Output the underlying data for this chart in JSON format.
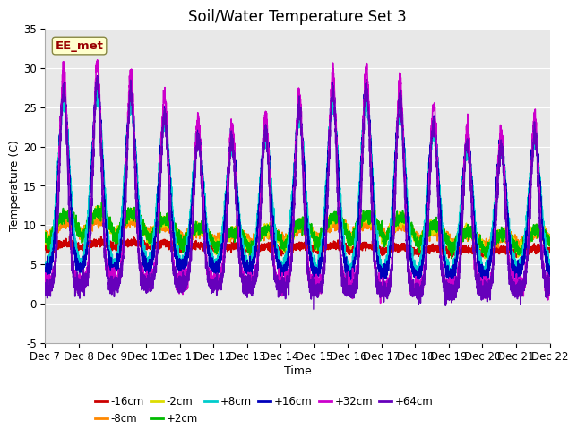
{
  "title": "Soil/Water Temperature Set 3",
  "xlabel": "Time",
  "ylabel": "Temperature (C)",
  "ylim": [
    -5,
    35
  ],
  "duration_days": 15,
  "n_points": 4320,
  "xtick_labels": [
    "Dec 7",
    "Dec 8",
    "Dec 9",
    "Dec 10",
    "Dec 11",
    "Dec 12",
    "Dec 13",
    "Dec 14",
    "Dec 15",
    "Dec 16",
    "Dec 17",
    "Dec 18",
    "Dec 19",
    "Dec 20",
    "Dec 21",
    "Dec 22"
  ],
  "plot_bg": "#e8e8e8",
  "series": [
    {
      "label": "-16cm",
      "color": "#cc0000",
      "lw": 1.2,
      "zorder": 3,
      "base": 5.8,
      "amp": 1.8,
      "phase_shift": 0.55,
      "sharpness": 0.5,
      "min_val": 4.5,
      "noise": 0.25
    },
    {
      "label": "-8cm",
      "color": "#ff8800",
      "lw": 1.2,
      "zorder": 3,
      "base": 4.5,
      "amp": 6.0,
      "phase_shift": 0.5,
      "sharpness": 0.6,
      "min_val": 1.0,
      "noise": 0.35
    },
    {
      "label": "-2cm",
      "color": "#dddd00",
      "lw": 1.2,
      "zorder": 3,
      "base": 3.0,
      "amp": 8.5,
      "phase_shift": 0.45,
      "sharpness": 0.5,
      "min_val": -1.5,
      "noise": 0.4
    },
    {
      "label": "+2cm",
      "color": "#00bb00",
      "lw": 1.2,
      "zorder": 3,
      "base": 3.0,
      "amp": 8.5,
      "phase_shift": 0.45,
      "sharpness": 0.5,
      "min_val": -1.5,
      "noise": 0.4
    },
    {
      "label": "+8cm",
      "color": "#00cccc",
      "lw": 1.2,
      "zorder": 4,
      "base": 4.0,
      "amp": 22.0,
      "phase_shift": 0.3,
      "sharpness": 0.18,
      "min_val": 0.5,
      "noise": 0.5
    },
    {
      "label": "+16cm",
      "color": "#0000bb",
      "lw": 1.2,
      "zorder": 4,
      "base": 4.0,
      "amp": 24.0,
      "phase_shift": 0.28,
      "sharpness": 0.15,
      "min_val": 1.0,
      "noise": 0.5
    },
    {
      "label": "+32cm",
      "color": "#cc00cc",
      "lw": 1.2,
      "zorder": 5,
      "base": 2.5,
      "amp": 28.0,
      "phase_shift": 0.25,
      "sharpness": 0.12,
      "min_val": -3.5,
      "noise": 0.6
    },
    {
      "label": "+64cm",
      "color": "#6600bb",
      "lw": 1.2,
      "zorder": 5,
      "base": 2.0,
      "amp": 26.0,
      "phase_shift": 0.22,
      "sharpness": 0.12,
      "min_val": -3.0,
      "noise": 0.6
    }
  ],
  "legend_box_label": "EE_met",
  "legend_box_color": "#ffffcc",
  "legend_box_border": "#888844",
  "title_fontsize": 12,
  "axis_fontsize": 9,
  "tick_fontsize": 8.5
}
